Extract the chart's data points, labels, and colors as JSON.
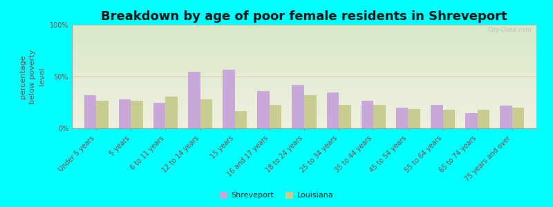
{
  "title": "Breakdown by age of poor female residents in Shreveport",
  "ylabel": "percentage\nbelow poverty\nlevel",
  "categories": [
    "Under 5 years",
    "5 years",
    "6 to 11 years",
    "12 to 14 years",
    "15 years",
    "16 and 17 years",
    "18 to 24 years",
    "25 to 34 years",
    "35 to 44 years",
    "45 to 54 years",
    "55 to 64 years",
    "65 to 74 years",
    "75 years and over"
  ],
  "shreveport": [
    32,
    28,
    25,
    55,
    57,
    36,
    42,
    35,
    27,
    20,
    23,
    15,
    22
  ],
  "louisiana": [
    27,
    27,
    31,
    28,
    17,
    23,
    32,
    23,
    23,
    19,
    18,
    18,
    20
  ],
  "shreveport_color": "#c8a8d8",
  "louisiana_color": "#c8cc90",
  "background_color": "#00ffff",
  "grad_top_color": "#d8e8c8",
  "grad_bottom_color": "#f0f0e0",
  "ylim": [
    0,
    100
  ],
  "yticks": [
    0,
    50,
    100
  ],
  "ytick_labels": [
    "0%",
    "50%",
    "100%"
  ],
  "bar_width": 0.35,
  "title_fontsize": 13,
  "axis_label_fontsize": 8,
  "tick_fontsize": 7,
  "label_color": "#884444",
  "legend_labels": [
    "Shreveport",
    "Louisiana"
  ],
  "watermark": "City-Data.com",
  "grid_color": "#e8b0b0",
  "grid_linewidth": 0.6
}
